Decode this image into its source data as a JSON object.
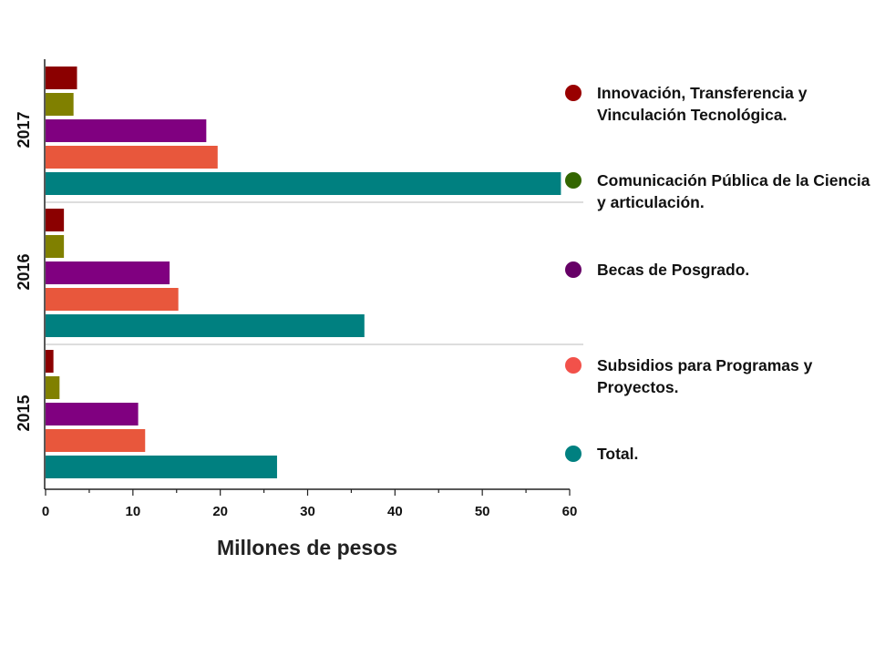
{
  "chart_data": {
    "type": "bar",
    "orientation": "horizontal",
    "groups": [
      "2017",
      "2016",
      "2015"
    ],
    "series": [
      {
        "name": "Innovación, Transferencia y Vinculación Tecnológica.",
        "color": "#8B0000",
        "values": [
          3.6,
          2.1,
          0.9
        ]
      },
      {
        "name": "Comunicación Pública de la Ciencia y articulación.",
        "color": "#808000",
        "values": [
          3.2,
          2.1,
          1.6
        ]
      },
      {
        "name": "Becas de Posgrado.",
        "color": "#800080",
        "values": [
          18.4,
          14.2,
          10.6
        ]
      },
      {
        "name": "Subsidios para Programas y Proyectos.",
        "color": "#E8573C",
        "values": [
          19.7,
          15.2,
          11.4
        ]
      },
      {
        "name": "Total.",
        "color": "#008080",
        "values": [
          59.0,
          36.5,
          26.5
        ]
      }
    ],
    "legend_dot_colors": [
      "#990000",
      "#336600",
      "#660066",
      "#F2514A",
      "#008080"
    ],
    "xlabel": "Millones de pesos",
    "xlim": [
      0,
      60
    ],
    "xticks": [
      "0",
      "10",
      "20",
      "30",
      "40",
      "50",
      "60"
    ],
    "grid": false,
    "legend_position": "right"
  }
}
